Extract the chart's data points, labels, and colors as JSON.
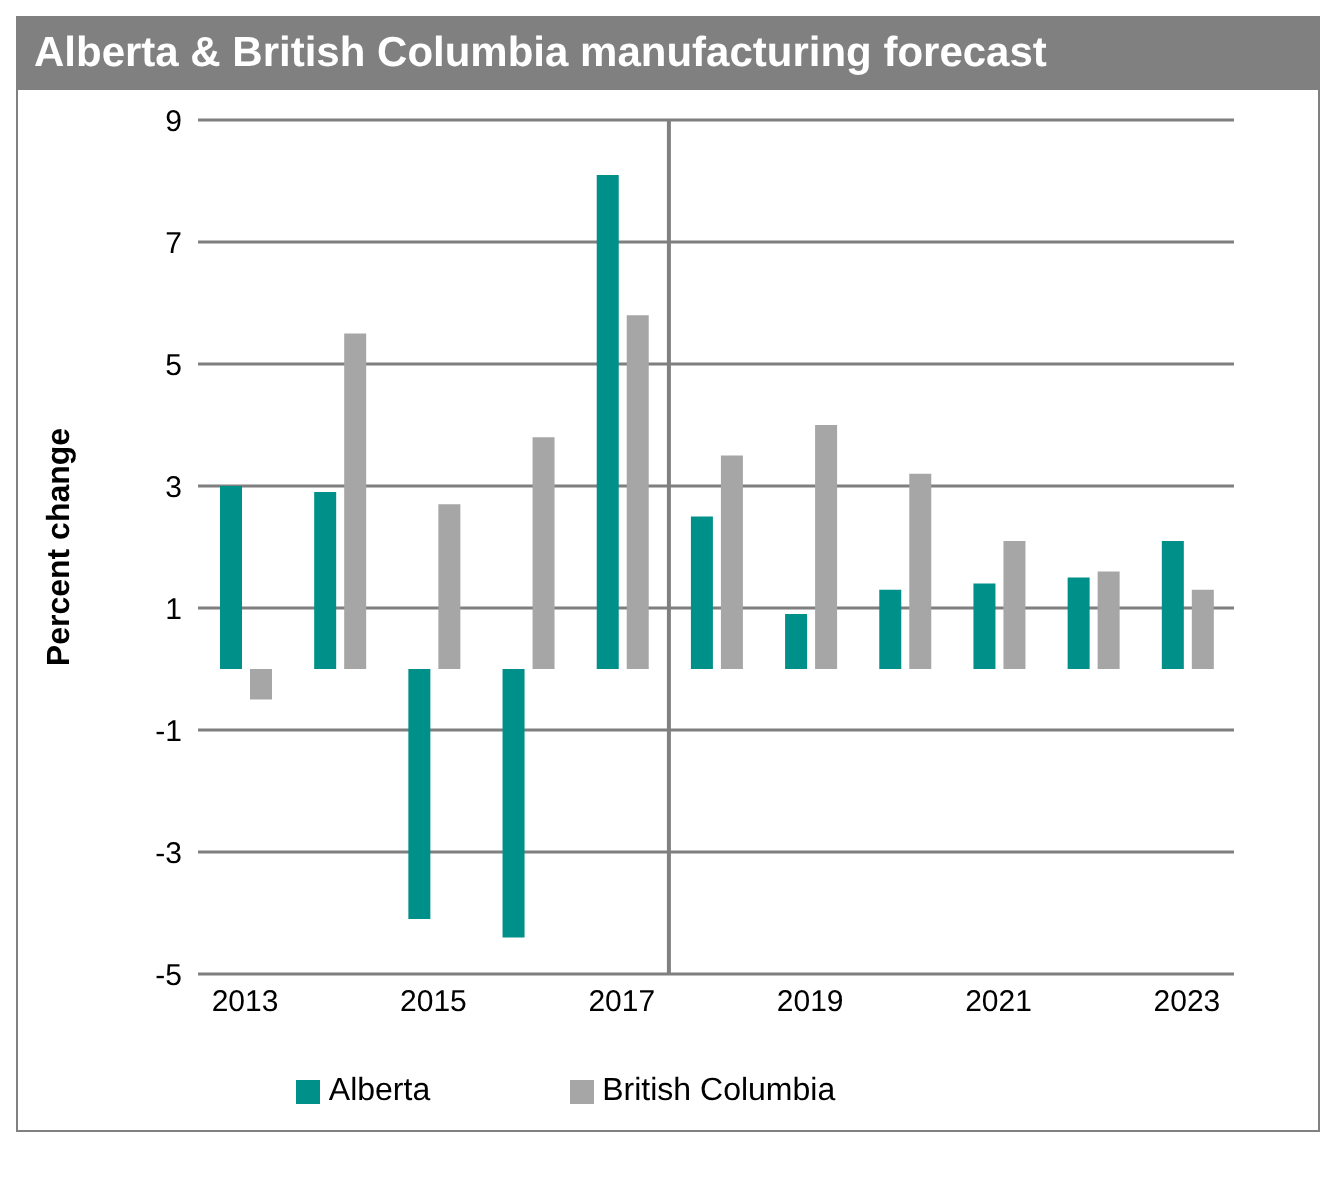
{
  "chart_data": {
    "type": "bar",
    "title": "Alberta & British Columbia manufacturing forecast",
    "ylabel": "Percent change",
    "x": [
      2013,
      2014,
      2015,
      2016,
      2017,
      2018,
      2019,
      2020,
      2021,
      2022,
      2023
    ],
    "xlim": [
      2012.5,
      2023.5
    ],
    "xticks": [
      2013,
      2015,
      2017,
      2019,
      2021,
      2023
    ],
    "ylim": [
      -5,
      9
    ],
    "yticks": [
      -5,
      -3,
      -1,
      1,
      3,
      5,
      7,
      9
    ],
    "series": [
      {
        "name": "Alberta",
        "color": "#00908a",
        "values": [
          3.0,
          2.9,
          -4.1,
          -4.4,
          8.1,
          2.5,
          0.9,
          1.3,
          1.4,
          1.5,
          2.1
        ]
      },
      {
        "name": "British Columbia",
        "color": "#a6a6a6",
        "values": [
          -0.5,
          5.5,
          2.7,
          3.8,
          5.8,
          3.5,
          4.0,
          3.2,
          2.1,
          1.6,
          1.3
        ]
      }
    ],
    "ref_lines": [
      {
        "axis": "x",
        "value": 2017.5,
        "color": "#808080"
      }
    ],
    "grid": "y",
    "legend": "bottom"
  }
}
